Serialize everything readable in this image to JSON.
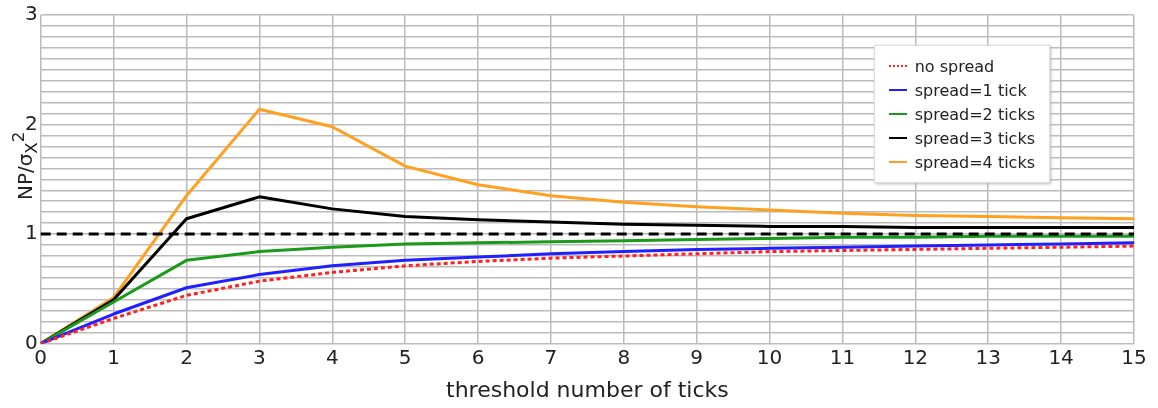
{
  "chart_data": {
    "type": "line",
    "xlabel": "threshold number of ticks",
    "ylabel": "NP/σ$_{X}$$^{2}$",
    "x": [
      0,
      1,
      2,
      3,
      4,
      5,
      6,
      7,
      8,
      9,
      10,
      11,
      12,
      13,
      14,
      15
    ],
    "xlim": [
      0,
      15
    ],
    "xticks": [
      0,
      1,
      2,
      3,
      4,
      5,
      6,
      7,
      8,
      9,
      10,
      11,
      12,
      13,
      14,
      15
    ],
    "ylim": [
      0,
      3
    ],
    "yticks": [
      0,
      {
        "value": 0.1,
        "label": null
      },
      {
        "value": 0.2,
        "label": null
      },
      {
        "value": 0.3,
        "label": null
      },
      {
        "value": 0.4,
        "label": null
      },
      {
        "value": 0.5,
        "label": null
      },
      {
        "value": 0.6,
        "label": null
      },
      {
        "value": 0.7,
        "label": null
      },
      {
        "value": 0.8,
        "label": null
      },
      {
        "value": 0.9,
        "label": null
      },
      1,
      {
        "value": 1.1,
        "label": null
      },
      {
        "value": 1.2,
        "label": null
      },
      {
        "value": 1.3,
        "label": null
      },
      {
        "value": 1.4,
        "label": null
      },
      {
        "value": 1.5,
        "label": null
      },
      {
        "value": 1.6,
        "label": null
      },
      {
        "value": 1.7,
        "label": null
      },
      {
        "value": 1.8,
        "label": null
      },
      {
        "value": 1.9,
        "label": null
      },
      2,
      {
        "value": 2.1,
        "label": null
      },
      {
        "value": 2.2,
        "label": null
      },
      {
        "value": 2.3,
        "label": null
      },
      {
        "value": 2.4,
        "label": null
      },
      {
        "value": 2.5,
        "label": null
      },
      {
        "value": 2.6,
        "label": null
      },
      {
        "value": 2.7,
        "label": null
      },
      {
        "value": 2.8,
        "label": null
      },
      {
        "value": 2.9,
        "label": null
      },
      3
    ],
    "grid": true,
    "legend": "top right",
    "marker": "none",
    "ref_lines": [
      {
        "axis": "y",
        "value": 1,
        "color": "#000000",
        "line_style": "dashed"
      }
    ],
    "series": [
      {
        "name": "no spread",
        "color": "#ff2020",
        "line_style": "dotted",
        "values": [
          0,
          0.23,
          0.44,
          0.57,
          0.65,
          0.71,
          0.75,
          0.78,
          0.8,
          0.82,
          0.84,
          0.85,
          0.86,
          0.87,
          0.88,
          0.89
        ]
      },
      {
        "name": "spread=1 tick",
        "color": "#2020ff",
        "values": [
          0,
          0.27,
          0.51,
          0.63,
          0.71,
          0.76,
          0.79,
          0.82,
          0.84,
          0.86,
          0.87,
          0.88,
          0.89,
          0.9,
          0.91,
          0.92
        ]
      },
      {
        "name": "spread=2 ticks",
        "color": "#1a9a1a",
        "values": [
          0,
          0.38,
          0.76,
          0.84,
          0.88,
          0.91,
          0.92,
          0.93,
          0.94,
          0.95,
          0.96,
          0.97,
          0.97,
          0.98,
          0.98,
          0.98
        ]
      },
      {
        "name": "spread=3 ticks",
        "color": "#000000",
        "values": [
          0,
          0.4,
          1.14,
          1.34,
          1.23,
          1.16,
          1.13,
          1.11,
          1.09,
          1.08,
          1.07,
          1.07,
          1.06,
          1.06,
          1.06,
          1.06
        ]
      },
      {
        "name": "spread=4 ticks",
        "color": "#ffa020",
        "values": [
          0,
          0.42,
          1.35,
          2.14,
          1.98,
          1.62,
          1.45,
          1.35,
          1.29,
          1.25,
          1.22,
          1.19,
          1.17,
          1.16,
          1.15,
          1.14
        ]
      }
    ]
  }
}
